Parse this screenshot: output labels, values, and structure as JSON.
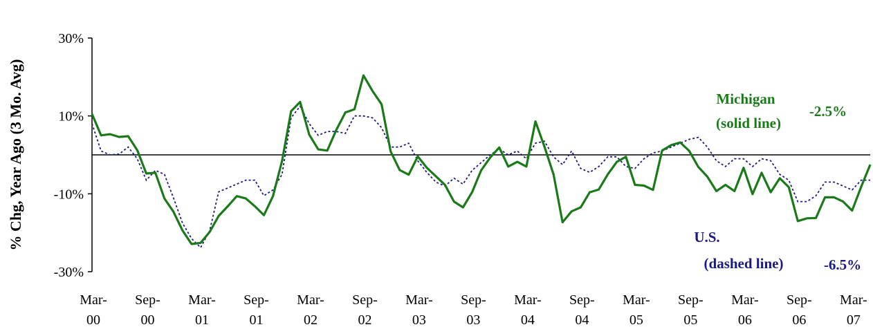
{
  "chart_data": {
    "type": "line",
    "title": "",
    "ylabel": "% Chg, Year Ago (3 Mo. Avg)",
    "xlabel": "",
    "ylim": [
      -30,
      30
    ],
    "yticks": [
      30,
      10,
      -10,
      -30
    ],
    "ytick_labels": [
      "30%",
      "10%",
      "-10%",
      "-30%"
    ],
    "xticks": [
      {
        "top": "Mar-",
        "bottom": "00",
        "x": 0
      },
      {
        "top": "Sep-",
        "bottom": "00",
        "x": 6
      },
      {
        "top": "Mar-",
        "bottom": "01",
        "x": 12
      },
      {
        "top": "Sep-",
        "bottom": "01",
        "x": 18
      },
      {
        "top": "Mar-",
        "bottom": "02",
        "x": 24
      },
      {
        "top": "Sep-",
        "bottom": "02",
        "x": 30
      },
      {
        "top": "Mar-",
        "bottom": "03",
        "x": 36
      },
      {
        "top": "Sep-",
        "bottom": "03",
        "x": 42
      },
      {
        "top": "Mar-",
        "bottom": "04",
        "x": 48
      },
      {
        "top": "Sep-",
        "bottom": "04",
        "x": 54
      },
      {
        "top": "Mar-",
        "bottom": "05",
        "x": 60
      },
      {
        "top": "Sep-",
        "bottom": "05",
        "x": 66
      },
      {
        "top": "Mar-",
        "bottom": "06",
        "x": 72
      },
      {
        "top": "Sep-",
        "bottom": "06",
        "x": 78
      },
      {
        "top": "Mar-",
        "bottom": "07",
        "x": 84
      }
    ],
    "grid": false,
    "zero_line": true,
    "series": [
      {
        "name": "Michigan",
        "style": "solid",
        "color": "#1a7a1a",
        "values": [
          10.5,
          5.0,
          5.3,
          4.6,
          4.8,
          1.2,
          -4.8,
          -4.6,
          -11.2,
          -14.6,
          -19.4,
          -22.9,
          -22.6,
          -19.8,
          -15.7,
          -13.2,
          -10.6,
          -11.2,
          -13.2,
          -15.5,
          -10.6,
          -1.6,
          11.2,
          13.6,
          5.2,
          1.4,
          1.1,
          6.4,
          10.9,
          11.7,
          20.4,
          16.4,
          13.0,
          0.9,
          -3.9,
          -5.1,
          -0.4,
          -3.3,
          -5.5,
          -7.7,
          -12.0,
          -13.5,
          -9.6,
          -4.0,
          -0.7,
          1.9,
          -3.0,
          -1.8,
          -3.0,
          8.6,
          2.1,
          -5.0,
          -17.3,
          -14.5,
          -13.5,
          -9.6,
          -8.9,
          -5.0,
          -1.8,
          -0.5,
          -7.7,
          -7.9,
          -9.0,
          1.1,
          2.5,
          3.2,
          1.0,
          -3.1,
          -5.6,
          -9.3,
          -7.7,
          -9.3,
          -3.3,
          -10.1,
          -4.6,
          -9.6,
          -6.0,
          -8.3,
          -17.0,
          -16.3,
          -16.2,
          -10.9,
          -10.9,
          -12.0,
          -14.3,
          -8.2,
          -2.5
        ]
      },
      {
        "name": "U.S.",
        "style": "dashed",
        "color": "#1a1a80",
        "values": [
          8.0,
          1.0,
          0.0,
          0.2,
          2.0,
          -1.0,
          -6.5,
          -4.0,
          -5.0,
          -11.0,
          -17.5,
          -21.5,
          -23.8,
          -19.5,
          -9.5,
          -8.5,
          -7.5,
          -6.5,
          -6.5,
          -10.5,
          -9.0,
          -5.0,
          9.5,
          12.5,
          8.0,
          5.0,
          6.0,
          6.0,
          5.5,
          10.0,
          10.0,
          9.5,
          7.0,
          2.0,
          2.0,
          3.0,
          -1.5,
          -4.5,
          -7.0,
          -8.0,
          -6.0,
          -7.5,
          -4.0,
          -2.0,
          0.0,
          1.5,
          0.0,
          1.0,
          -1.0,
          3.0,
          3.5,
          -0.5,
          -2.5,
          1.0,
          -3.5,
          -4.5,
          -3.0,
          -0.5,
          -0.5,
          -3.0,
          -3.5,
          -1.0,
          0.5,
          1.0,
          2.0,
          3.0,
          4.0,
          4.5,
          2.0,
          -1.5,
          -3.0,
          -1.0,
          -1.0,
          -3.0,
          -1.0,
          -1.5,
          -5.0,
          -6.5,
          -12.0,
          -12.0,
          -10.5,
          -7.0,
          -7.0,
          -8.0,
          -9.0,
          -6.5,
          -6.5
        ]
      }
    ],
    "annotations": [
      {
        "key": "mi_name",
        "text": "Michigan",
        "color": "#1a7a1a"
      },
      {
        "key": "mi_style",
        "text": "(solid line)",
        "color": "#1a7a1a"
      },
      {
        "key": "mi_last",
        "text": "-2.5%",
        "color": "#1a7a1a"
      },
      {
        "key": "us_name",
        "text": "U.S.",
        "color": "#1a1a80"
      },
      {
        "key": "us_style",
        "text": "(dashed line)",
        "color": "#1a1a80"
      },
      {
        "key": "us_last",
        "text": "-6.5%",
        "color": "#1a1a80"
      }
    ]
  }
}
